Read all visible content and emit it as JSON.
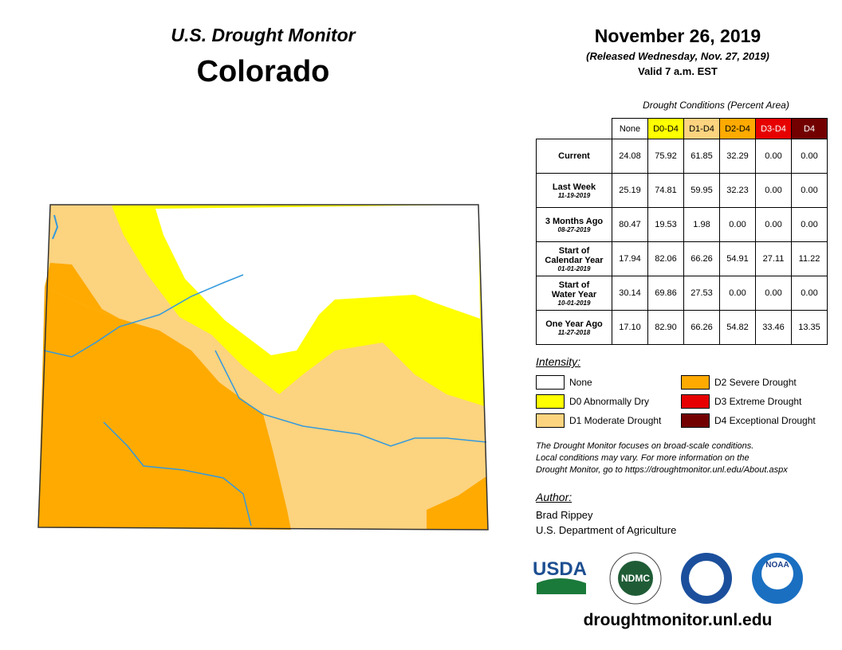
{
  "header": {
    "program": "U.S. Drought Monitor",
    "state": "Colorado",
    "date": "November 26, 2019",
    "released": "(Released Wednesday, Nov. 27, 2019)",
    "valid": "Valid 7 a.m. EST"
  },
  "table": {
    "caption": "Drought Conditions (Percent Area)",
    "columns": [
      {
        "label": "None",
        "color": "#ffffff",
        "text_color": "#000000"
      },
      {
        "label": "D0-D4",
        "color": "#ffff00",
        "text_color": "#000000"
      },
      {
        "label": "D1-D4",
        "color": "#fcd37f",
        "text_color": "#000000"
      },
      {
        "label": "D2-D4",
        "color": "#ffaa00",
        "text_color": "#000000"
      },
      {
        "label": "D3-D4",
        "color": "#e60000",
        "text_color": "#ffffff"
      },
      {
        "label": "D4",
        "color": "#730000",
        "text_color": "#ffffff"
      }
    ],
    "rows": [
      {
        "label_lines": [
          "Current"
        ],
        "values": [
          "24.08",
          "75.92",
          "61.85",
          "32.29",
          "0.00",
          "0.00"
        ]
      },
      {
        "label_lines": [
          "Last Week"
        ],
        "date": "11-19-2019",
        "values": [
          "25.19",
          "74.81",
          "59.95",
          "32.23",
          "0.00",
          "0.00"
        ]
      },
      {
        "label_lines": [
          "3 Months Ago"
        ],
        "date": "08-27-2019",
        "values": [
          "80.47",
          "19.53",
          "1.98",
          "0.00",
          "0.00",
          "0.00"
        ]
      },
      {
        "label_lines": [
          "Start of",
          "Calendar Year"
        ],
        "date": "01-01-2019",
        "values": [
          "17.94",
          "82.06",
          "66.26",
          "54.91",
          "27.11",
          "11.22"
        ]
      },
      {
        "label_lines": [
          "Start of",
          "Water Year"
        ],
        "date": "10-01-2019",
        "values": [
          "30.14",
          "69.86",
          "27.53",
          "0.00",
          "0.00",
          "0.00"
        ]
      },
      {
        "label_lines": [
          "One Year Ago"
        ],
        "date": "11-27-2018",
        "values": [
          "17.10",
          "82.90",
          "66.26",
          "54.82",
          "33.46",
          "13.35"
        ]
      }
    ]
  },
  "legend": {
    "title": "Intensity:",
    "items": [
      {
        "label": "None",
        "color": "#ffffff"
      },
      {
        "label": "D0 Abnormally Dry",
        "color": "#ffff00"
      },
      {
        "label": "D1 Moderate Drought",
        "color": "#fcd37f"
      },
      {
        "label": "D2 Severe Drought",
        "color": "#ffaa00"
      },
      {
        "label": "D3 Extreme Drought",
        "color": "#e60000"
      },
      {
        "label": "D4 Exceptional Drought",
        "color": "#730000"
      }
    ]
  },
  "note": [
    "The Drought Monitor focuses on broad-scale conditions.",
    "Local conditions may vary. For more information on the",
    "Drought Monitor, go to https://droughtmonitor.unl.edu/About.aspx"
  ],
  "author": {
    "title": "Author:",
    "name": "Brad Rippey",
    "org": "U.S. Department of Agriculture"
  },
  "logos": [
    "USDA",
    "NDMC",
    "NOAA"
  ],
  "url": "droughtmonitor.unl.edu"
}
